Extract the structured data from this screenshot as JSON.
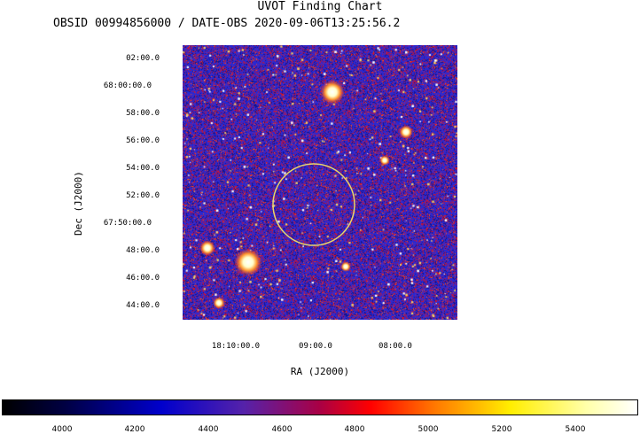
{
  "title": "UVOT Finding Chart",
  "subtitle": "OBSID 00994856000 / DATE-OBS 2020-09-06T13:25:56.2",
  "axes": {
    "xlabel": "RA (J2000)",
    "ylabel": "Dec (J2000)",
    "dec_ticks": [
      "02:00.0",
      "68:00:00.0",
      "58:00.0",
      "56:00.0",
      "54:00.0",
      "52:00.0",
      "67:50:00.0",
      "48:00.0",
      "46:00.0",
      "44:00.0"
    ],
    "ra_ticks": [
      "18:10:00.0",
      "09:00.0",
      "08:00.0"
    ]
  },
  "colorbar": {
    "ticks": [
      "4000",
      "4200",
      "4400",
      "4600",
      "4800",
      "5000",
      "5200",
      "5400"
    ]
  },
  "colors": {
    "circle": "#e8d66a",
    "background_noise": "#1a1acc",
    "hot": "#ff2200"
  },
  "image": {
    "description_icon": "sky-field-image"
  }
}
